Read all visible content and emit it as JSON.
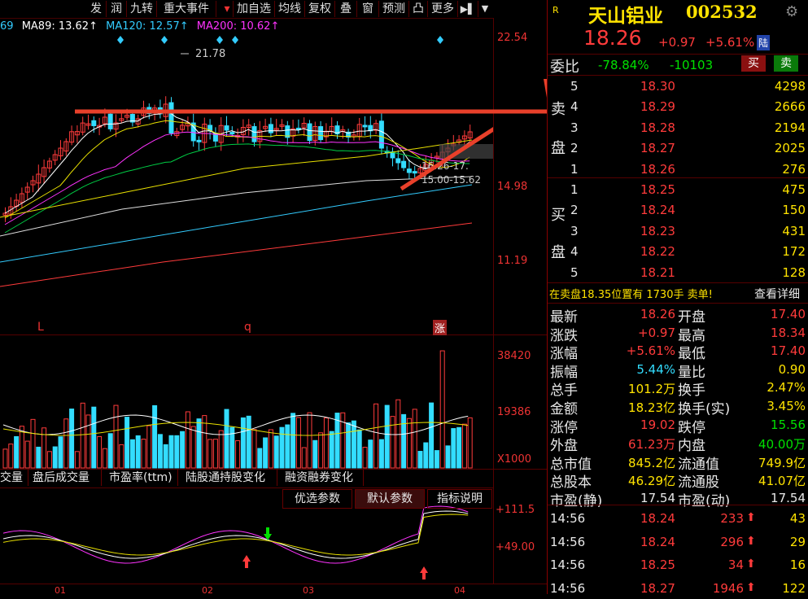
{
  "toolbar": {
    "buttons": [
      "发",
      "润",
      "九转",
      "重大事件",
      "加自选",
      "均线",
      "复权",
      "叠",
      "窗",
      "预测",
      "凸",
      "更多",
      "▶▌",
      "▼"
    ]
  },
  "ma_legend": {
    "ma_cut": "69",
    "ma89": "MA89: 13.62↑",
    "ma120": "MA120: 12.57↑",
    "ma200": "MA200: 10.62↑"
  },
  "price_axis": [
    "22.54",
    "14.98",
    "11.19"
  ],
  "annotations": {
    "high": "21.78",
    "range1": "16.26-17.",
    "range2": "15.00-15.62",
    "marker_l": "L",
    "marker_q": "q",
    "marker_zhang": "涨"
  },
  "volume_axis": [
    "38420",
    "19386",
    "X1000"
  ],
  "bottom_tabs": [
    "交量",
    "盘后成交量",
    "市盈率(ttm)",
    "陆股通持股变化",
    "融资融券变化"
  ],
  "param_buttons": [
    "优选参数",
    "默认参数",
    "指标说明"
  ],
  "indicator_axis": [
    "+111.5",
    "+49.00"
  ],
  "date_axis": [
    "01",
    "02",
    "03",
    "04"
  ],
  "stock": {
    "badge": "R",
    "name": "天山铝业",
    "code": "002532",
    "price": "18.26",
    "change": "+0.97",
    "pct": "+5.61%",
    "lu": "陆"
  },
  "weibi": {
    "label": "委比",
    "ratio": "-78.84%",
    "diff": "-10103",
    "buy_btn": "买",
    "sell_btn": "卖"
  },
  "sell_side_label": [
    "卖",
    "盘"
  ],
  "buy_side_label": [
    "买",
    "盘"
  ],
  "asks": [
    {
      "level": "5",
      "price": "18.30",
      "vol": "4298"
    },
    {
      "level": "4",
      "price": "18.29",
      "vol": "2666"
    },
    {
      "level": "3",
      "price": "18.28",
      "vol": "2194"
    },
    {
      "level": "2",
      "price": "18.27",
      "vol": "2025"
    },
    {
      "level": "1",
      "price": "18.26",
      "vol": "276"
    }
  ],
  "bids": [
    {
      "level": "1",
      "price": "18.25",
      "vol": "475"
    },
    {
      "level": "2",
      "price": "18.24",
      "vol": "150"
    },
    {
      "level": "3",
      "price": "18.23",
      "vol": "431"
    },
    {
      "level": "4",
      "price": "18.22",
      "vol": "172"
    },
    {
      "level": "5",
      "price": "18.21",
      "vol": "128"
    }
  ],
  "notice": {
    "text1": "在卖盘",
    "price": "18.35",
    "text2": "位置有",
    "qty": "1730手",
    "text3": "卖单!",
    "link": "查看详细"
  },
  "stats": [
    {
      "l1": "最新",
      "v1": "18.26",
      "c1": "red",
      "l2": "开盘",
      "v2": "17.40",
      "c2": "red"
    },
    {
      "l1": "涨跌",
      "v1": "+0.97",
      "c1": "red",
      "l2": "最高",
      "v2": "18.34",
      "c2": "red"
    },
    {
      "l1": "涨幅",
      "v1": "+5.61%",
      "c1": "red",
      "l2": "最低",
      "v2": "17.40",
      "c2": "red"
    },
    {
      "l1": "振幅",
      "v1": "5.44%",
      "c1": "cyan",
      "l2": "量比",
      "v2": "0.90",
      "c2": "yellow"
    },
    {
      "l1": "总手",
      "v1": "101.2万",
      "c1": "yellow",
      "l2": "换手",
      "v2": "2.47%",
      "c2": "yellow"
    },
    {
      "l1": "金额",
      "v1": "18.23亿",
      "c1": "yellow",
      "l2": "换手(实)",
      "v2": "3.45%",
      "c2": "yellow"
    },
    {
      "l1": "涨停",
      "v1": "19.02",
      "c1": "red",
      "l2": "跌停",
      "v2": "15.56",
      "c2": "green"
    },
    {
      "l1": "外盘",
      "v1": "61.23万",
      "c1": "red",
      "l2": "内盘",
      "v2": "40.00万",
      "c2": "green"
    },
    {
      "l1": "总市值",
      "v1": "845.2亿",
      "c1": "yellow",
      "l2": "流通值",
      "v2": "749.9亿",
      "c2": "yellow"
    },
    {
      "l1": "总股本",
      "v1": "46.29亿",
      "c1": "yellow",
      "l2": "流通股",
      "v2": "41.07亿",
      "c2": "yellow"
    },
    {
      "l1": "市盈(静)",
      "v1": "17.54",
      "c1": "white",
      "l2": "市盈(动)",
      "v2": "17.54",
      "c2": "white"
    }
  ],
  "ticks": [
    {
      "time": "14:56",
      "price": "18.24",
      "vol": "233",
      "count": "43"
    },
    {
      "time": "14:56",
      "price": "18.24",
      "vol": "296",
      "count": "29"
    },
    {
      "time": "14:56",
      "price": "18.25",
      "vol": "34",
      "count": "16"
    },
    {
      "time": "14:56",
      "price": "18.27",
      "vol": "1946",
      "count": "122"
    }
  ],
  "colors": {
    "up": "#ff3b3b",
    "down": "#33ddff",
    "ma_white": "#ffffff",
    "ma_yellow": "#e8e000",
    "ma_magenta": "#ff33ff",
    "ma_green": "#00cc44",
    "arrow": "#e8402a"
  }
}
